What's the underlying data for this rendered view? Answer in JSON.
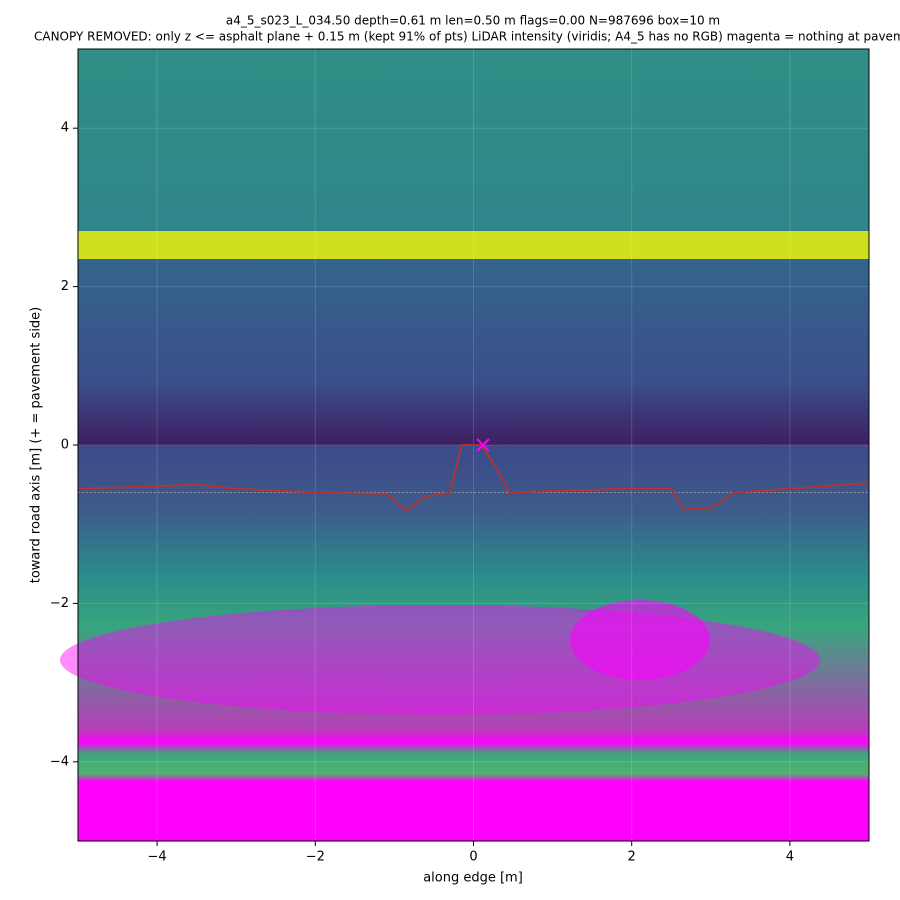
{
  "chart_data": {
    "type": "line",
    "title": "a4_5_s023_L_034.50  depth=0.61 m  len=0.50 m  flags=0.00  N=987696  box=10 m",
    "subtitle": "CANOPY REMOVED: only z <= asphalt plane + 0.15 m  (kept 91% of pts)   LiDAR intensity (viridis; A4_5 has no RGB)   magenta = nothing at paveme",
    "xlabel": "along edge [m]",
    "ylabel": "toward road axis [m]  (+ = pavement side)",
    "xlim": [
      -5,
      5
    ],
    "ylim": [
      -5,
      5
    ],
    "xticks": [
      {
        "value": -4,
        "label": "−4"
      },
      {
        "value": -2,
        "label": "−2"
      },
      0,
      2,
      4
    ],
    "yticks": [
      {
        "value": -4,
        "label": "−4"
      },
      {
        "value": -2,
        "label": "−2"
      },
      0,
      2,
      4
    ],
    "grid": true,
    "series": [
      {
        "color": "#b5332e",
        "x": [
          -5,
          -4,
          -3.5,
          -3,
          -2,
          -1.1,
          -0.85,
          -0.6,
          -0.3,
          -0.15,
          0.1,
          0.3,
          0.45,
          1,
          2,
          2.5,
          2.65,
          3.0,
          3.3,
          4,
          5
        ],
        "values": [
          -0.55,
          -0.52,
          -0.5,
          -0.55,
          -0.6,
          -0.62,
          -0.83,
          -0.65,
          -0.6,
          0.0,
          0.0,
          -0.3,
          -0.6,
          -0.58,
          -0.55,
          -0.55,
          -0.8,
          -0.8,
          -0.6,
          -0.55,
          -0.48
        ]
      }
    ],
    "reference_line": {
      "y": -0.6,
      "color": "#aaaaaa"
    },
    "marker": {
      "x": 0.12,
      "y": 0,
      "color": "#ff00ff"
    }
  }
}
